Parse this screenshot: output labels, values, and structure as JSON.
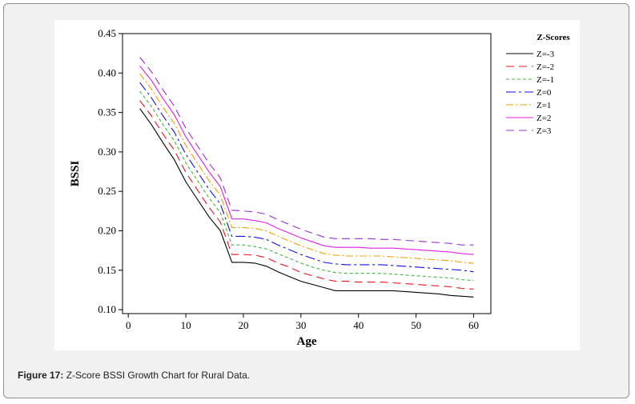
{
  "caption": {
    "label": "Figure 17:",
    "text": " Z-Score BSSI Growth Chart for Rural Data."
  },
  "chart_data": {
    "type": "line",
    "title": "",
    "xlabel": "Age",
    "ylabel": "BSSI",
    "xlim": [
      -1,
      63
    ],
    "ylim": [
      0.095,
      0.45
    ],
    "xticks": [
      0,
      10,
      20,
      30,
      40,
      50,
      60
    ],
    "yticks": [
      0.1,
      0.15,
      0.2,
      0.25,
      0.3,
      0.35,
      0.4,
      0.45
    ],
    "xtick_labels": [
      "0",
      "10",
      "20",
      "30",
      "40",
      "50",
      "60"
    ],
    "ytick_labels": [
      "0.10",
      "0.15",
      "0.20",
      "0.25",
      "0.30",
      "0.35",
      "0.40",
      "0.45"
    ],
    "grid": false,
    "legend": {
      "title": "Z-Scores",
      "placement": "right"
    },
    "x": [
      2,
      4,
      6,
      8,
      10,
      12,
      14,
      16,
      18,
      20,
      22,
      24,
      26,
      28,
      30,
      32,
      34,
      36,
      38,
      40,
      42,
      44,
      46,
      48,
      50,
      52,
      54,
      56,
      58,
      60
    ],
    "series": [
      {
        "name": "Z=-3",
        "color": "#000000",
        "dash": "",
        "values": [
          0.355,
          0.335,
          0.312,
          0.29,
          0.262,
          0.24,
          0.218,
          0.2,
          0.16,
          0.16,
          0.159,
          0.155,
          0.148,
          0.142,
          0.136,
          0.132,
          0.128,
          0.124,
          0.124,
          0.124,
          0.124,
          0.124,
          0.124,
          0.123,
          0.122,
          0.121,
          0.12,
          0.118,
          0.117,
          0.116
        ]
      },
      {
        "name": "Z=-2",
        "color": "#e8141c",
        "dash": "10,6",
        "values": [
          0.365,
          0.346,
          0.323,
          0.302,
          0.274,
          0.252,
          0.23,
          0.211,
          0.17,
          0.17,
          0.169,
          0.166,
          0.159,
          0.154,
          0.147,
          0.143,
          0.139,
          0.136,
          0.136,
          0.135,
          0.135,
          0.135,
          0.134,
          0.133,
          0.132,
          0.131,
          0.13,
          0.129,
          0.127,
          0.126
        ]
      },
      {
        "name": "Z=-1",
        "color": "#3fb53f",
        "dash": "4,3",
        "values": [
          0.377,
          0.358,
          0.335,
          0.314,
          0.286,
          0.264,
          0.242,
          0.223,
          0.182,
          0.182,
          0.18,
          0.177,
          0.171,
          0.165,
          0.159,
          0.154,
          0.15,
          0.147,
          0.146,
          0.146,
          0.146,
          0.146,
          0.145,
          0.144,
          0.143,
          0.142,
          0.141,
          0.14,
          0.138,
          0.137
        ]
      },
      {
        "name": "Z=0",
        "color": "#1010e0",
        "dash": "12,4,3,4",
        "values": [
          0.388,
          0.369,
          0.346,
          0.325,
          0.297,
          0.275,
          0.253,
          0.234,
          0.193,
          0.193,
          0.192,
          0.189,
          0.182,
          0.176,
          0.17,
          0.165,
          0.16,
          0.158,
          0.157,
          0.157,
          0.157,
          0.157,
          0.156,
          0.155,
          0.154,
          0.153,
          0.152,
          0.151,
          0.15,
          0.148
        ]
      },
      {
        "name": "Z=1",
        "color": "#f0a000",
        "dash": "9,3,2,3",
        "values": [
          0.399,
          0.38,
          0.357,
          0.336,
          0.308,
          0.286,
          0.264,
          0.245,
          0.204,
          0.204,
          0.203,
          0.2,
          0.193,
          0.187,
          0.181,
          0.176,
          0.171,
          0.169,
          0.168,
          0.168,
          0.168,
          0.168,
          0.167,
          0.166,
          0.165,
          0.164,
          0.163,
          0.162,
          0.16,
          0.159
        ]
      },
      {
        "name": "Z=2",
        "color": "#e020e0",
        "dash": "",
        "values": [
          0.409,
          0.391,
          0.368,
          0.347,
          0.319,
          0.297,
          0.275,
          0.256,
          0.215,
          0.215,
          0.213,
          0.21,
          0.203,
          0.197,
          0.191,
          0.186,
          0.181,
          0.179,
          0.179,
          0.179,
          0.178,
          0.178,
          0.178,
          0.177,
          0.176,
          0.175,
          0.174,
          0.173,
          0.171,
          0.17
        ]
      },
      {
        "name": "Z=3",
        "color": "#9933cc",
        "dash": "10,6",
        "values": [
          0.42,
          0.402,
          0.379,
          0.358,
          0.33,
          0.308,
          0.286,
          0.267,
          0.226,
          0.225,
          0.224,
          0.221,
          0.214,
          0.208,
          0.202,
          0.197,
          0.192,
          0.19,
          0.19,
          0.19,
          0.19,
          0.189,
          0.189,
          0.188,
          0.187,
          0.186,
          0.185,
          0.184,
          0.182,
          0.182
        ]
      }
    ]
  }
}
